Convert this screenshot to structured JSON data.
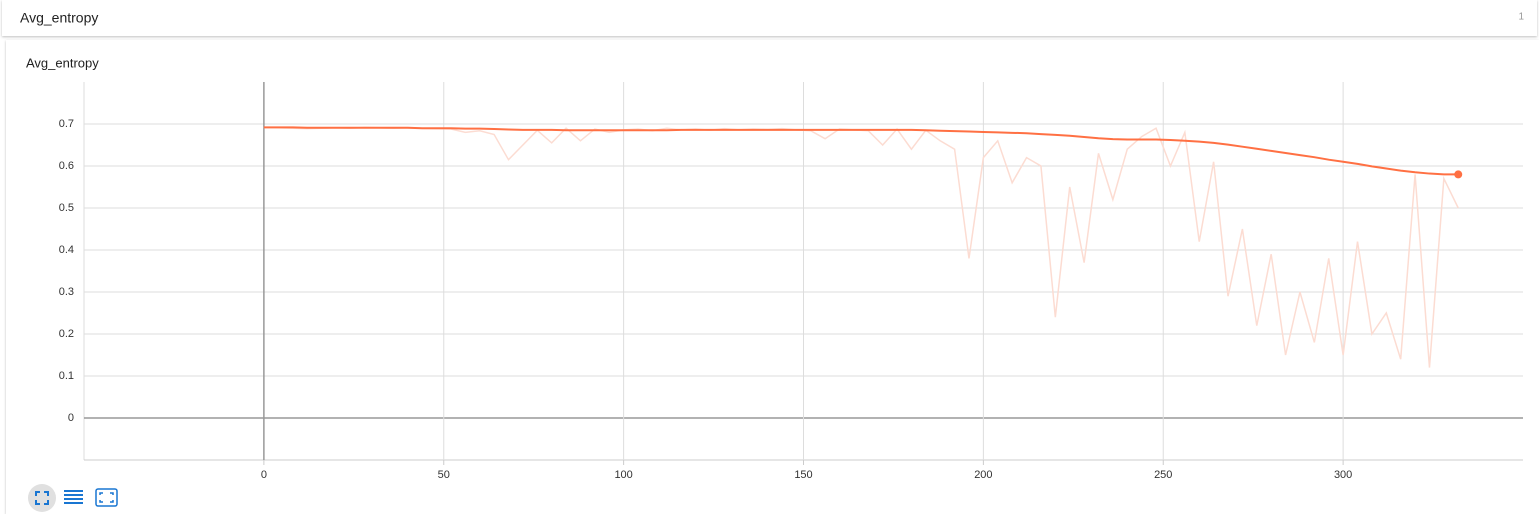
{
  "header": {
    "title": "Avg_entropy",
    "count": 1
  },
  "chart_data": {
    "type": "line",
    "title": "Avg_entropy",
    "x": [
      0,
      4,
      8,
      12,
      16,
      20,
      24,
      28,
      32,
      36,
      40,
      44,
      48,
      52,
      56,
      60,
      64,
      68,
      72,
      76,
      80,
      84,
      88,
      92,
      96,
      100,
      104,
      108,
      112,
      116,
      120,
      124,
      128,
      132,
      136,
      140,
      144,
      148,
      152,
      156,
      160,
      164,
      168,
      172,
      176,
      180,
      184,
      188,
      192,
      196,
      200,
      204,
      208,
      212,
      216,
      220,
      224,
      228,
      232,
      236,
      240,
      244,
      248,
      252,
      256,
      260,
      264,
      268,
      272,
      276,
      280,
      284,
      288,
      292,
      296,
      300,
      304,
      308,
      312,
      316,
      320,
      324,
      328,
      332
    ],
    "series": [
      {
        "color": "#fcdcd2",
        "values": [
          0.692,
          0.691,
          0.69,
          0.689,
          0.69,
          0.691,
          0.69,
          0.692,
          0.691,
          0.69,
          0.691,
          0.69,
          0.689,
          0.688,
          0.68,
          0.684,
          0.675,
          0.615,
          0.65,
          0.685,
          0.655,
          0.69,
          0.66,
          0.688,
          0.68,
          0.686,
          0.688,
          0.684,
          0.69,
          0.686,
          0.688,
          0.685,
          0.689,
          0.686,
          0.688,
          0.687,
          0.689,
          0.686,
          0.684,
          0.665,
          0.688,
          0.686,
          0.684,
          0.65,
          0.688,
          0.64,
          0.685,
          0.66,
          0.64,
          0.38,
          0.62,
          0.66,
          0.56,
          0.62,
          0.6,
          0.24,
          0.55,
          0.37,
          0.63,
          0.52,
          0.64,
          0.67,
          0.69,
          0.6,
          0.68,
          0.42,
          0.61,
          0.29,
          0.45,
          0.22,
          0.39,
          0.15,
          0.3,
          0.18,
          0.38,
          0.15,
          0.42,
          0.2,
          0.25,
          0.14,
          0.58,
          0.12,
          0.57,
          0.5
        ]
      },
      {
        "color": "#ff7043",
        "values": [
          0.692,
          0.692,
          0.692,
          0.691,
          0.691,
          0.691,
          0.691,
          0.691,
          0.691,
          0.691,
          0.691,
          0.69,
          0.69,
          0.69,
          0.689,
          0.689,
          0.688,
          0.687,
          0.686,
          0.686,
          0.686,
          0.685,
          0.685,
          0.685,
          0.685,
          0.685,
          0.685,
          0.685,
          0.685,
          0.686,
          0.686,
          0.686,
          0.686,
          0.686,
          0.686,
          0.686,
          0.686,
          0.686,
          0.686,
          0.686,
          0.686,
          0.686,
          0.686,
          0.686,
          0.686,
          0.686,
          0.685,
          0.684,
          0.683,
          0.682,
          0.681,
          0.68,
          0.679,
          0.678,
          0.676,
          0.674,
          0.672,
          0.669,
          0.666,
          0.664,
          0.663,
          0.663,
          0.663,
          0.662,
          0.66,
          0.658,
          0.655,
          0.651,
          0.646,
          0.641,
          0.636,
          0.631,
          0.626,
          0.621,
          0.615,
          0.61,
          0.605,
          0.599,
          0.594,
          0.589,
          0.585,
          0.582,
          0.58,
          0.58
        ]
      }
    ],
    "xlim": [
      -50,
      350
    ],
    "ylim": [
      -0.1,
      0.8
    ],
    "xticks": [
      0,
      50,
      100,
      150,
      200,
      250,
      300
    ],
    "yticks": [
      0,
      0.1,
      0.2,
      0.3,
      0.4,
      0.5,
      0.6,
      0.7
    ],
    "grid": true
  }
}
